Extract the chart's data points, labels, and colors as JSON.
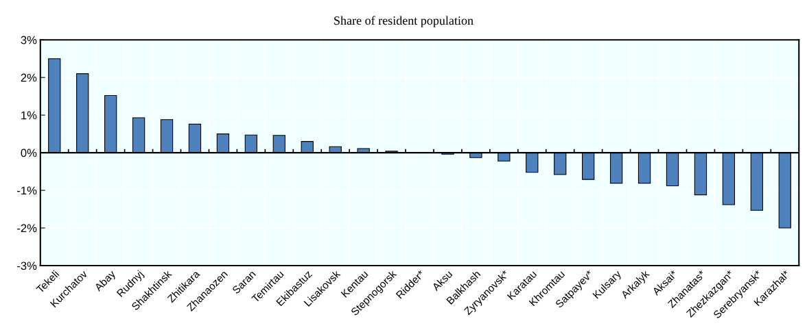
{
  "chart_data": {
    "type": "bar",
    "title": "Share of resident population",
    "categories": [
      "Tekeli",
      "Kurchatov",
      "Abay",
      "Rudnyj",
      "Shakhtinsk",
      "Zhitikara",
      "Zhanaozen",
      "Saran",
      "Temirtau",
      "Ekibastuz",
      "Lisakovsk",
      "Kentau",
      "Stepnogorsk",
      "Ridder*",
      "Aksu",
      "Balkhash",
      "Zyryanovsk*",
      "Karatau",
      "Khromtau",
      "Satpayev*",
      "Kulsary",
      "Arkalyk",
      "Aksai*",
      "Zhanatas*",
      "Zhezkazgan*",
      "Serebryansk*",
      "Karazhal*"
    ],
    "values": [
      2.5,
      2.1,
      1.52,
      0.93,
      0.88,
      0.76,
      0.5,
      0.47,
      0.46,
      0.3,
      0.16,
      0.11,
      0.04,
      0.01,
      -0.04,
      -0.13,
      -0.22,
      -0.52,
      -0.58,
      -0.71,
      -0.81,
      -0.81,
      -0.88,
      -1.12,
      -1.38,
      -1.53,
      -2.0
    ],
    "color": "#4f81bd",
    "ylim": [
      -3,
      3
    ],
    "yticks": [
      {
        "value": -3,
        "label": "-3%"
      },
      {
        "value": -2,
        "label": "-2%"
      },
      {
        "value": -1,
        "label": "-1%"
      },
      {
        "value": 0,
        "label": "0%"
      },
      {
        "value": 1,
        "label": "1%"
      },
      {
        "value": 2,
        "label": "2%"
      },
      {
        "value": 3,
        "label": "3%"
      }
    ],
    "grid": true
  }
}
